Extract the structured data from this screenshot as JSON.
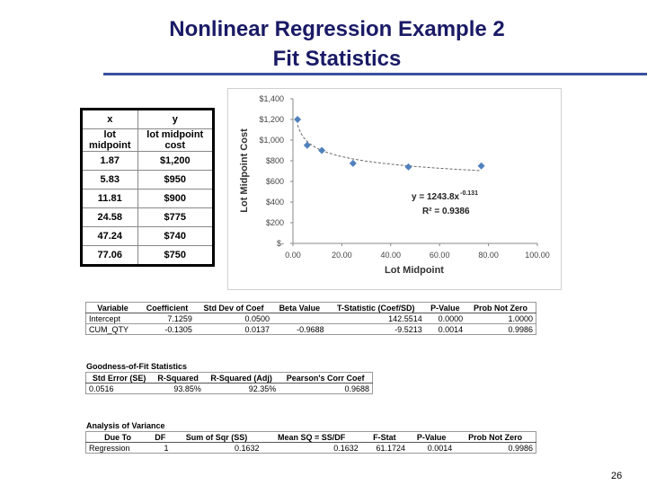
{
  "header": {
    "title": "Nonlinear Regression Example 2",
    "subtitle": "Fit Statistics"
  },
  "data_table": {
    "header": [
      [
        "x",
        "y"
      ],
      [
        "lot midpoint",
        "lot midpoint cost"
      ]
    ],
    "rows": [
      [
        "1.87",
        "$1,200"
      ],
      [
        "5.83",
        "$950"
      ],
      [
        "11.81",
        "$900"
      ],
      [
        "24.58",
        "$775"
      ],
      [
        "47.24",
        "$740"
      ],
      [
        "77.06",
        "$750"
      ]
    ]
  },
  "chart_data": {
    "type": "scatter",
    "x_label": "Lot Midpoint",
    "y_label": "Lot Midpoint Cost",
    "x": [
      1.87,
      5.83,
      11.81,
      24.58,
      47.24,
      77.06
    ],
    "values": [
      1200,
      950,
      900,
      775,
      740,
      750
    ],
    "color": "#4f81bd",
    "xlim": [
      0,
      100
    ],
    "ylim": [
      0,
      1400
    ],
    "xticks": [
      {
        "value": 0,
        "label": "0.00"
      },
      {
        "value": 20,
        "label": "20.00"
      },
      {
        "value": 40,
        "label": "40.00"
      },
      {
        "value": 60,
        "label": "60.00"
      },
      {
        "value": 80,
        "label": "80.00"
      },
      {
        "value": 100,
        "label": "100.00"
      }
    ],
    "yticks": [
      {
        "value": 0,
        "label": "$-"
      },
      {
        "value": 200,
        "label": "$200"
      },
      {
        "value": 400,
        "label": "$400"
      },
      {
        "value": 600,
        "label": "$600"
      },
      {
        "value": 800,
        "label": "$800"
      },
      {
        "value": 1000,
        "label": "$1,000"
      },
      {
        "value": 1200,
        "label": "$1,200"
      },
      {
        "value": 1400,
        "label": "$1,400"
      }
    ],
    "trendline": {
      "type": "power",
      "coefficient": 1243.8,
      "exponent": -0.131,
      "equation": "y = 1243.8x",
      "equation_exponent": "-0.131",
      "r_squared": "R² = 0.9386"
    }
  },
  "coefficients_table": {
    "header": [
      "Variable",
      "Coefficient",
      "Std Dev of Coef",
      "Beta Value",
      "T-Statistic (Coef/SD)",
      "P-Value",
      "Prob Not Zero"
    ],
    "rows": [
      [
        "Intercept",
        "7.1259",
        "0.0500",
        null,
        "142.5514",
        "0.0000",
        "1.0000"
      ],
      [
        "CUM_QTY",
        "-0.1305",
        "0.0137",
        "-0.9688",
        "-9.5213",
        "0.0014",
        "0.9986"
      ]
    ]
  },
  "goodness_of_fit": {
    "title": "Goodness-of-Fit Statistics",
    "header": [
      "Std Error (SE)",
      "R-Squared",
      "R-Squared (Adj)",
      "Pearson's Corr Coef"
    ],
    "rows": [
      [
        "0.0516",
        "93.85%",
        "92.35%",
        "0.9688"
      ]
    ]
  },
  "anova": {
    "title": "Analysis of Variance",
    "header": [
      "Due To",
      "DF",
      "Sum of Sqr (SS)",
      "Mean SQ = SS/DF",
      "F-Stat",
      "P-Value",
      "Prob Not Zero"
    ],
    "rows": [
      [
        "Regression",
        "1",
        "0.1632",
        "0.1632",
        "61.1724",
        "0.0014",
        "0.9986"
      ]
    ]
  },
  "page_number": "26"
}
